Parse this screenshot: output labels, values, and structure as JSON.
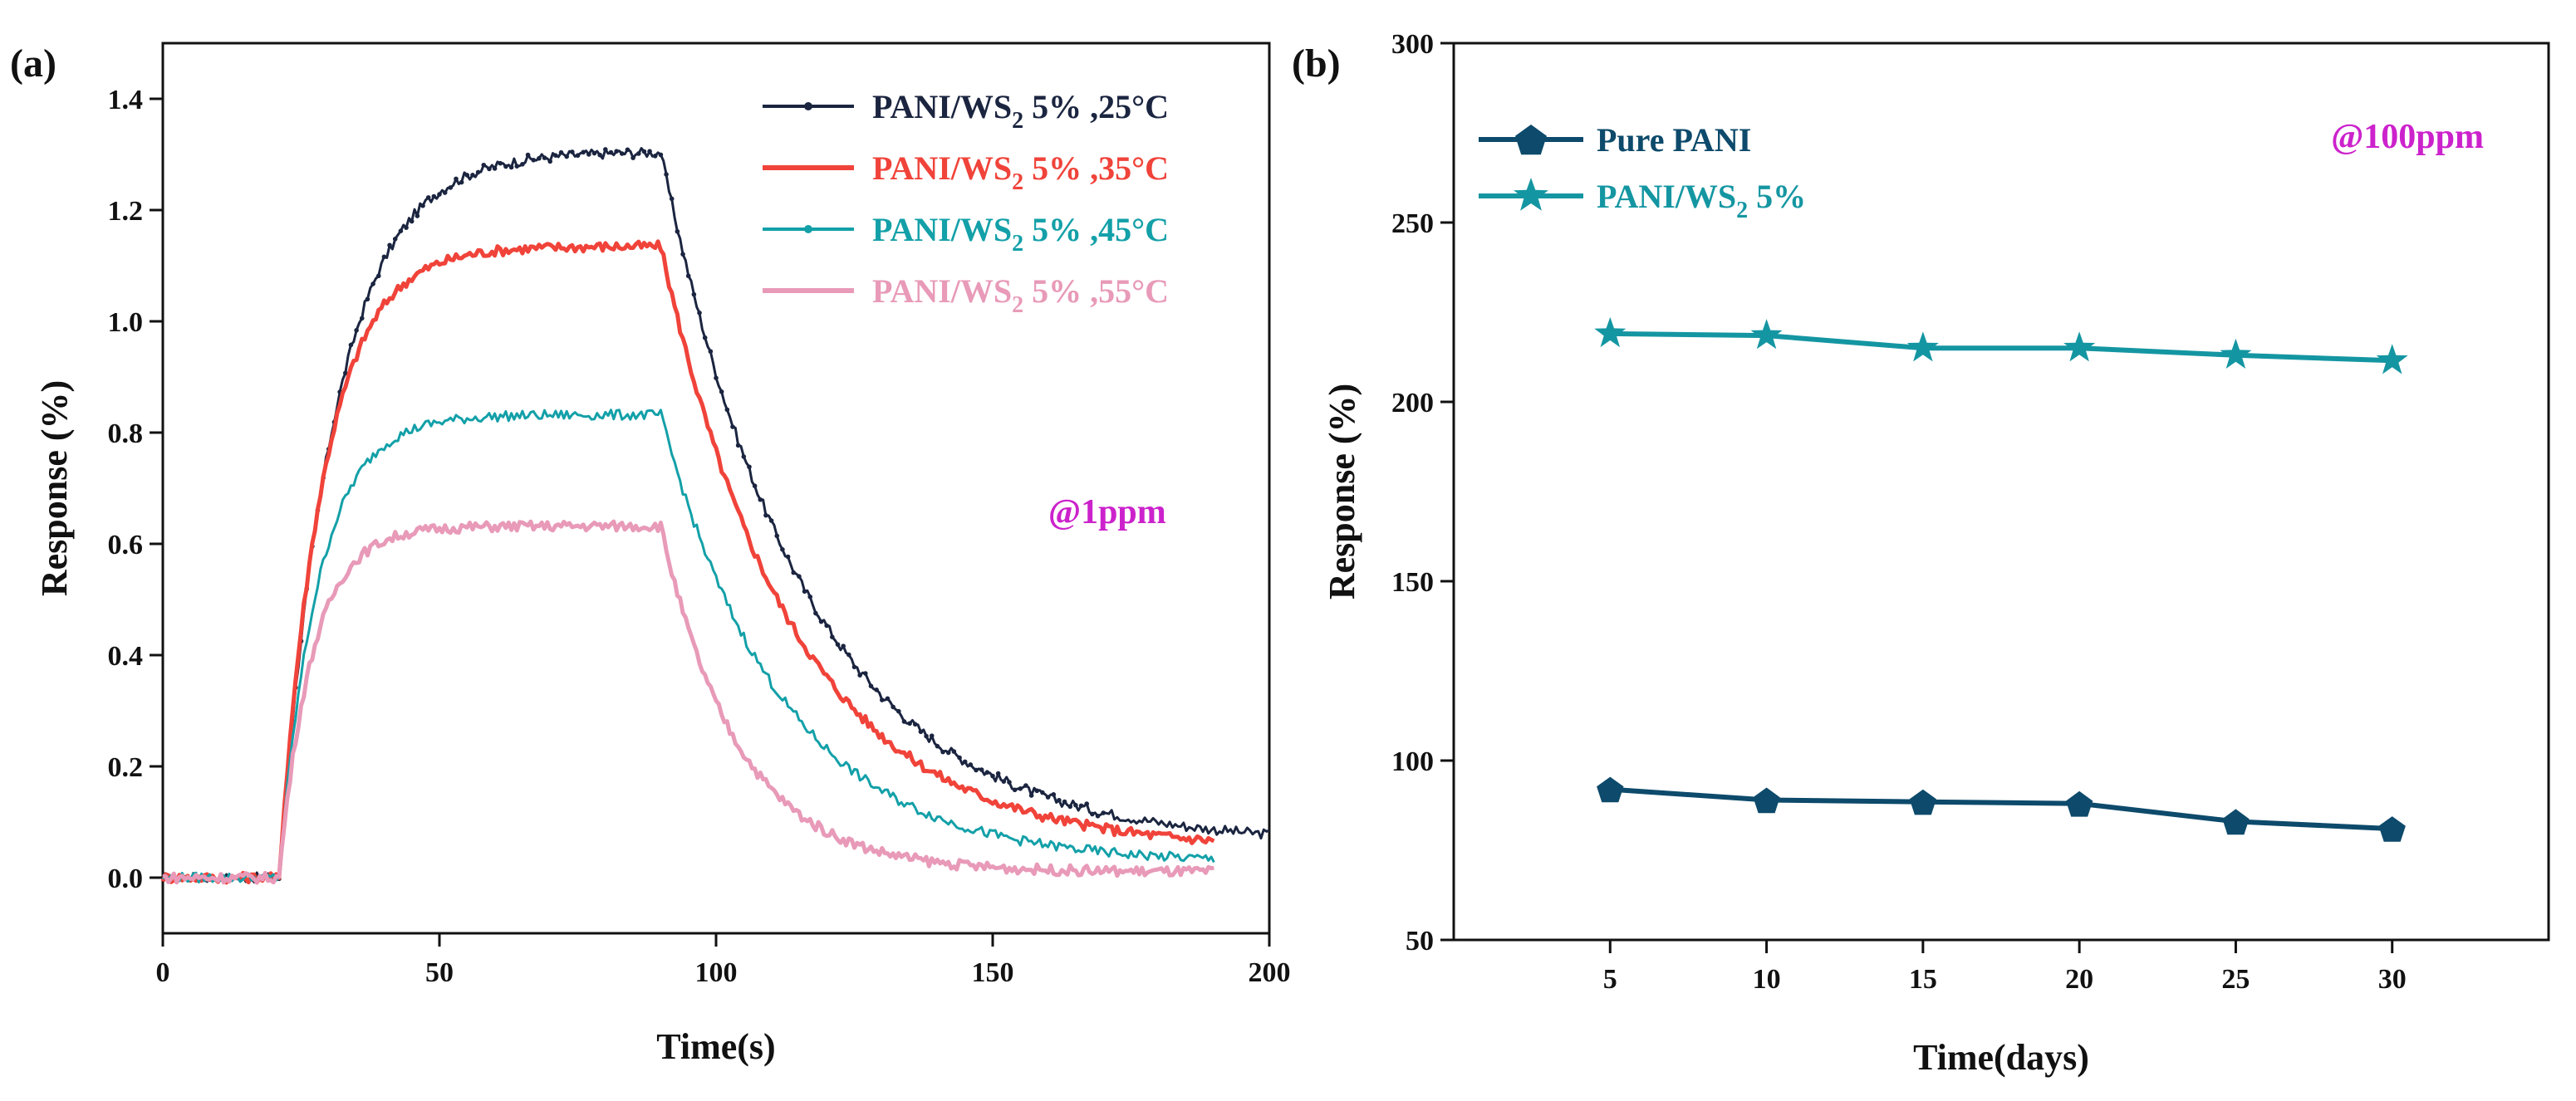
{
  "chart_data": [
    {
      "panel_label": "(a)",
      "type": "line",
      "xlabel": "Time(s)",
      "ylabel": "Response (%)",
      "xlim": [
        0,
        200
      ],
      "ylim": [
        -0.1,
        1.5
      ],
      "xticks": [
        0,
        50,
        100,
        150,
        200
      ],
      "yticks": [
        0.0,
        0.2,
        0.4,
        0.6,
        0.8,
        1.0,
        1.2,
        1.4
      ],
      "xtick_labels": [
        "0",
        "50",
        "100",
        "150",
        "200"
      ],
      "ytick_labels": [
        "0.0",
        "0.2",
        "0.4",
        "0.6",
        "0.8",
        "1.0",
        "1.2",
        "1.4"
      ],
      "annotation": {
        "text": "@1ppm",
        "x": 150,
        "y": 0.65,
        "color": "#cc22cc"
      },
      "legend_position": "top-right",
      "series": [
        {
          "name": "PANI/WS",
          "sub": "2",
          "rest": " 5% ,25°C",
          "color": "#1b2540",
          "marker": "dot",
          "legend_marker": true,
          "t0": 21,
          "t_off": 90,
          "t_end": 200,
          "baseline": 0.0,
          "peak": 1.305,
          "tau_rise": 10,
          "tau_fall": 26,
          "recover_to": 0.06
        },
        {
          "name": "PANI/WS",
          "sub": "2",
          "rest": " 5% ,35°C",
          "color": "#f0433a",
          "marker": "none",
          "legend_marker": false,
          "t0": 21,
          "t_off": 90,
          "t_end": 190,
          "baseline": 0.0,
          "peak": 1.135,
          "tau_rise": 8,
          "tau_fall": 24,
          "recover_to": 0.05
        },
        {
          "name": "PANI/WS",
          "sub": "2",
          "rest": " 5% ,45°C",
          "color": "#13a0a8",
          "marker": "none",
          "legend_marker": true,
          "t0": 21,
          "t_off": 90,
          "t_end": 190,
          "baseline": 0.0,
          "peak": 0.832,
          "tau_rise": 7,
          "tau_fall": 22,
          "recover_to": 0.025
        },
        {
          "name": "PANI/WS",
          "sub": "2",
          "rest": " 5% ,55°C",
          "color": "#e89ab8",
          "marker": "none",
          "legend_marker": false,
          "t0": 21,
          "t_off": 90,
          "t_end": 190,
          "baseline": 0.0,
          "peak": 0.632,
          "tau_rise": 6,
          "tau_fall": 14,
          "recover_to": 0.01
        }
      ]
    },
    {
      "panel_label": "(b)",
      "type": "line",
      "xlabel": "Time(days)",
      "ylabel": "Response (%)",
      "xlim": [
        0,
        35
      ],
      "ylim": [
        50,
        300
      ],
      "xticks": [
        5,
        10,
        15,
        20,
        25,
        30
      ],
      "yticks": [
        50,
        100,
        150,
        200,
        250,
        300
      ],
      "xtick_labels": [
        "5",
        "10",
        "15",
        "20",
        "25",
        "30"
      ],
      "ytick_labels": [
        "50",
        "100",
        "150",
        "200",
        "250",
        "300"
      ],
      "annotation": {
        "text": "@100ppm",
        "color": "#cc22cc"
      },
      "legend_position": "top-left",
      "x": [
        5,
        10,
        15,
        20,
        25,
        30
      ],
      "series": [
        {
          "name": "Pure PANI",
          "sub": "",
          "rest": "",
          "color": "#0d4a6b",
          "marker": "pentagon",
          "values": [
            92,
            89,
            88.5,
            88,
            83,
            81
          ]
        },
        {
          "name": "PANI/WS",
          "sub": "2",
          "rest": " 5%",
          "color": "#1496a2",
          "marker": "star",
          "values": [
            219,
            218.5,
            215,
            215,
            213,
            211.5
          ]
        }
      ]
    }
  ]
}
